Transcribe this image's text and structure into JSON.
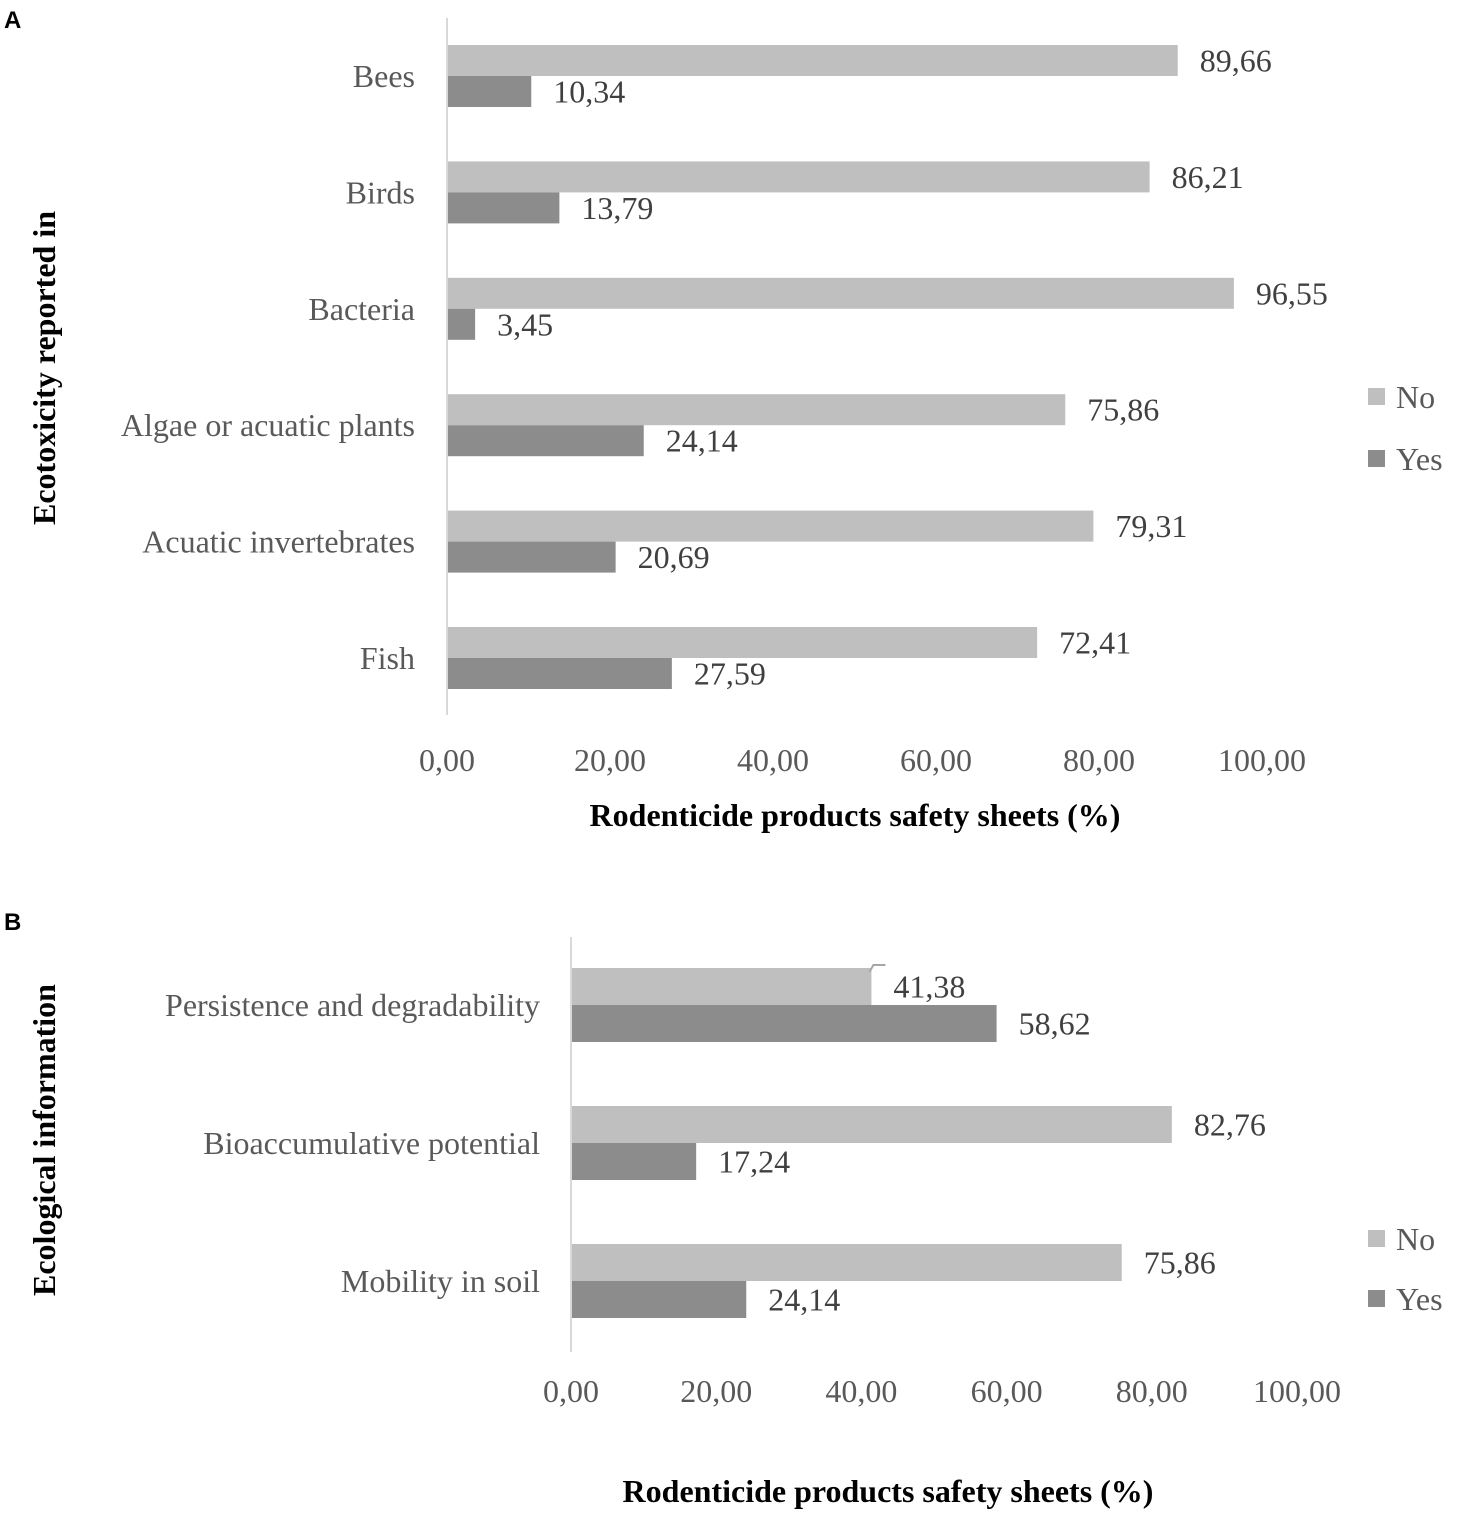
{
  "chart_data": [
    {
      "panel": "A",
      "type": "bar",
      "orientation": "horizontal",
      "title": "",
      "xlabel": "Rodenticide products safety sheets (%)",
      "ylabel": "Ecotoxicity reported in",
      "xlim": [
        0,
        100
      ],
      "xticks": [
        "0,00",
        "20,00",
        "40,00",
        "60,00",
        "80,00",
        "100,00"
      ],
      "categories": [
        "Bees",
        "Birds",
        "Bacteria",
        "Algae or acuatic plants",
        "Acuatic invertebrates",
        "Fish"
      ],
      "series": [
        {
          "name": "No",
          "color": "#bfbfbf",
          "values": [
            89.66,
            86.21,
            96.55,
            75.86,
            79.31,
            72.41
          ],
          "labels": [
            "89,66",
            "86,21",
            "96,55",
            "75,86",
            "79,31",
            "72,41"
          ]
        },
        {
          "name": "Yes",
          "color": "#8c8c8c",
          "values": [
            10.34,
            13.79,
            3.45,
            24.14,
            20.69,
            27.59
          ],
          "labels": [
            "10,34",
            "13,79",
            "3,45",
            "24,14",
            "20,69",
            "27,59"
          ]
        }
      ],
      "legend": "right"
    },
    {
      "panel": "B",
      "type": "bar",
      "orientation": "horizontal",
      "title": "",
      "xlabel": "Rodenticide products safety sheets (%)",
      "ylabel": "Ecological information",
      "xlim": [
        0,
        100
      ],
      "xticks": [
        "0,00",
        "20,00",
        "40,00",
        "60,00",
        "80,00",
        "100,00"
      ],
      "categories": [
        "Persistence and degradability",
        "Bioaccumulative potential",
        "Mobility in soil"
      ],
      "series": [
        {
          "name": "No",
          "color": "#bfbfbf",
          "values": [
            41.38,
            82.76,
            75.86
          ],
          "labels": [
            "41,38",
            "82,76",
            "75,86"
          ]
        },
        {
          "name": "Yes",
          "color": "#8c8c8c",
          "values": [
            58.62,
            17.24,
            24.14
          ],
          "labels": [
            "58,62",
            "17,24",
            "24,14"
          ]
        }
      ],
      "legend": "right"
    }
  ]
}
